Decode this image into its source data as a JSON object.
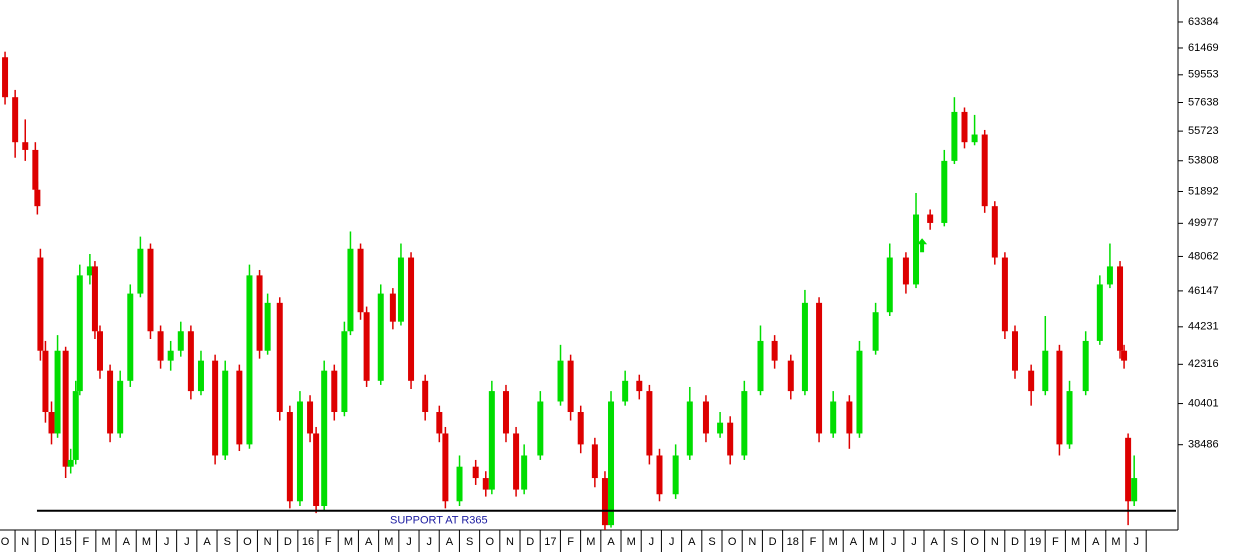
{
  "chart_data": {
    "type": "candlestick",
    "categories": [
      "O",
      "N",
      "D",
      "15",
      "F",
      "M",
      "A",
      "M",
      "J",
      "J",
      "A",
      "S",
      "O",
      "N",
      "D",
      "16",
      "F",
      "M",
      "A",
      "M",
      "J",
      "J",
      "A",
      "S",
      "O",
      "N",
      "D",
      "17",
      "F",
      "M",
      "A",
      "M",
      "J",
      "J",
      "A",
      "S",
      "O",
      "N",
      "D",
      "18",
      "F",
      "M",
      "A",
      "M",
      "J",
      "J",
      "A",
      "S",
      "O",
      "N",
      "D",
      "19",
      "F",
      "M",
      "A",
      "M",
      "J"
    ],
    "up_color": "#00dd00",
    "down_color": "#dd0000",
    "xlim": [
      -0.25,
      58.07
    ],
    "ylim": [
      34800,
      65050
    ],
    "log_y": true,
    "yticks": [
      63384,
      61469,
      59553,
      57638,
      55723,
      53808,
      51892,
      49977,
      48062,
      46147,
      44231,
      42316,
      40401,
      38486
    ],
    "candles": [
      [
        0,
        60800,
        61200,
        57500,
        58000
      ],
      [
        0.5,
        58000,
        58500,
        54000,
        55000
      ],
      [
        1,
        55000,
        56500,
        53800,
        54500
      ],
      [
        1.5,
        54500,
        55000,
        51500,
        52000
      ],
      [
        1.6,
        52000,
        52500,
        50500,
        51000
      ],
      [
        1.75,
        48000,
        48500,
        42500,
        43000
      ],
      [
        2,
        43000,
        43500,
        39500,
        40000
      ],
      [
        2.3,
        40000,
        40500,
        38500,
        39000
      ],
      [
        2.6,
        39000,
        43800,
        38800,
        43000
      ],
      [
        3,
        43000,
        43200,
        37000,
        37500
      ],
      [
        3.25,
        37500,
        38300,
        37200,
        37800
      ],
      [
        3.5,
        37800,
        41500,
        37600,
        41000
      ],
      [
        3.7,
        41000,
        47600,
        40800,
        47000
      ],
      [
        4.2,
        47000,
        48200,
        46500,
        47500
      ],
      [
        4.45,
        47500,
        47800,
        43600,
        44000
      ],
      [
        4.7,
        44000,
        44300,
        41600,
        42000
      ],
      [
        5.2,
        42000,
        42300,
        38600,
        39000
      ],
      [
        5.7,
        39000,
        42000,
        38800,
        41500
      ],
      [
        6.2,
        41500,
        46500,
        41200,
        46000
      ],
      [
        6.7,
        46000,
        49200,
        45800,
        48500
      ],
      [
        7.2,
        48500,
        48800,
        43600,
        44000
      ],
      [
        7.7,
        44000,
        44300,
        42100,
        42500
      ],
      [
        8.2,
        42500,
        43500,
        42000,
        43000
      ],
      [
        8.7,
        43000,
        44500,
        42700,
        44000
      ],
      [
        9.2,
        44000,
        44300,
        40600,
        41000
      ],
      [
        9.7,
        41000,
        43000,
        40800,
        42500
      ],
      [
        10.4,
        42500,
        42800,
        37600,
        38000
      ],
      [
        10.9,
        38000,
        42500,
        37800,
        42000
      ],
      [
        11.6,
        42000,
        42300,
        38200,
        38500
      ],
      [
        12.1,
        38500,
        47600,
        38300,
        47000
      ],
      [
        12.6,
        47000,
        47300,
        42600,
        43000
      ],
      [
        13,
        43000,
        46000,
        42800,
        45500
      ],
      [
        13.6,
        45500,
        45800,
        39600,
        40000
      ],
      [
        14.1,
        40000,
        40300,
        35700,
        36000
      ],
      [
        14.6,
        36000,
        41000,
        35800,
        40500
      ],
      [
        15.1,
        40500,
        40800,
        38600,
        39000
      ],
      [
        15.4,
        39000,
        39300,
        35500,
        35800
      ],
      [
        15.8,
        35800,
        42500,
        35600,
        42000
      ],
      [
        16.3,
        42000,
        42300,
        39600,
        40000
      ],
      [
        16.8,
        40000,
        44500,
        39800,
        44000
      ],
      [
        17.1,
        44000,
        49500,
        43800,
        48500
      ],
      [
        17.6,
        48500,
        48800,
        44600,
        45000
      ],
      [
        17.9,
        45000,
        45300,
        41200,
        41500
      ],
      [
        18.6,
        41500,
        46500,
        41300,
        46000
      ],
      [
        19.2,
        46000,
        46300,
        44100,
        44500
      ],
      [
        19.6,
        44500,
        48800,
        44300,
        48000
      ],
      [
        20.1,
        48000,
        48300,
        41100,
        41500
      ],
      [
        20.8,
        41500,
        41800,
        39600,
        40000
      ],
      [
        21.5,
        40000,
        40300,
        38600,
        39000
      ],
      [
        21.8,
        39000,
        39300,
        35700,
        36000
      ],
      [
        22.5,
        36000,
        38000,
        35800,
        37500
      ],
      [
        23.3,
        37500,
        37800,
        36700,
        37000
      ],
      [
        23.8,
        37000,
        37300,
        36200,
        36500
      ],
      [
        24.1,
        36500,
        41500,
        36300,
        41000
      ],
      [
        24.8,
        41000,
        41300,
        38600,
        39000
      ],
      [
        25.3,
        39000,
        39300,
        36200,
        36500
      ],
      [
        25.7,
        36500,
        38500,
        36300,
        38000
      ],
      [
        26.5,
        38000,
        41000,
        37800,
        40500
      ],
      [
        27.5,
        40500,
        43300,
        40300,
        42500
      ],
      [
        28,
        42500,
        42800,
        39600,
        40000
      ],
      [
        28.5,
        40000,
        40300,
        38100,
        38500
      ],
      [
        29.2,
        38500,
        38800,
        36600,
        37000
      ],
      [
        29.7,
        37000,
        37300,
        34800,
        35000
      ],
      [
        30,
        35000,
        41000,
        34900,
        40500
      ],
      [
        30.7,
        40500,
        42000,
        40300,
        41500
      ],
      [
        31.4,
        41500,
        41800,
        40600,
        41000
      ],
      [
        31.9,
        41000,
        41300,
        37600,
        38000
      ],
      [
        32.4,
        38000,
        38300,
        36000,
        36300
      ],
      [
        33.2,
        36300,
        38500,
        36100,
        38000
      ],
      [
        33.9,
        38000,
        41200,
        37800,
        40500
      ],
      [
        34.7,
        40500,
        40800,
        38600,
        39000
      ],
      [
        35.4,
        39000,
        40000,
        38800,
        39500
      ],
      [
        35.9,
        39500,
        39800,
        37600,
        38000
      ],
      [
        36.6,
        38000,
        41500,
        37800,
        41000
      ],
      [
        37.4,
        41000,
        44300,
        40800,
        43500
      ],
      [
        38.1,
        43500,
        43800,
        42100,
        42500
      ],
      [
        38.9,
        42500,
        42800,
        40600,
        41000
      ],
      [
        39.6,
        41000,
        46200,
        40800,
        45500
      ],
      [
        40.3,
        45500,
        45800,
        38600,
        39000
      ],
      [
        41,
        39000,
        41000,
        38800,
        40500
      ],
      [
        41.8,
        40500,
        40800,
        38300,
        39000
      ],
      [
        42.3,
        39000,
        43500,
        38800,
        43000
      ],
      [
        43.1,
        43000,
        45500,
        42800,
        45000
      ],
      [
        43.8,
        45000,
        48800,
        44800,
        48000
      ],
      [
        44.6,
        48000,
        48300,
        46000,
        46500
      ],
      [
        45.1,
        46500,
        51800,
        46300,
        50500
      ],
      [
        45.8,
        50500,
        50800,
        49600,
        50000
      ],
      [
        46.5,
        50000,
        54500,
        49800,
        53800
      ],
      [
        47,
        53800,
        58000,
        53600,
        57000
      ],
      [
        47.5,
        57000,
        57300,
        54600,
        55000
      ],
      [
        48,
        55000,
        56800,
        54800,
        55500
      ],
      [
        48.5,
        55500,
        55800,
        50600,
        51000
      ],
      [
        49,
        51000,
        51300,
        47600,
        48000
      ],
      [
        49.5,
        48000,
        48300,
        43600,
        44000
      ],
      [
        50,
        44000,
        44300,
        41600,
        42000
      ],
      [
        50.8,
        42000,
        42300,
        40300,
        41000
      ],
      [
        51.5,
        41000,
        44800,
        40800,
        43000
      ],
      [
        52.2,
        43000,
        43300,
        38000,
        38500
      ],
      [
        52.7,
        38500,
        41500,
        38300,
        41000
      ],
      [
        53.5,
        41000,
        44000,
        40800,
        43500
      ],
      [
        54.2,
        43500,
        47000,
        43300,
        46500
      ],
      [
        54.7,
        46500,
        48800,
        46300,
        47500
      ],
      [
        55.2,
        47500,
        47800,
        42600,
        43000
      ],
      [
        55.4,
        43000,
        43300,
        42100,
        42500
      ],
      [
        55.6,
        38800,
        39000,
        35000,
        36000
      ],
      [
        55.9,
        36000,
        38000,
        35800,
        37000
      ]
    ],
    "support": {
      "label": "SUPPORT AT R365",
      "value": 35600,
      "x": [
        1.58,
        57.97
      ],
      "color": "#000000",
      "label_color": "#1a1aa0"
    },
    "arrow": {
      "x": 45.4,
      "value": 48700,
      "color": "#00dd00"
    }
  }
}
